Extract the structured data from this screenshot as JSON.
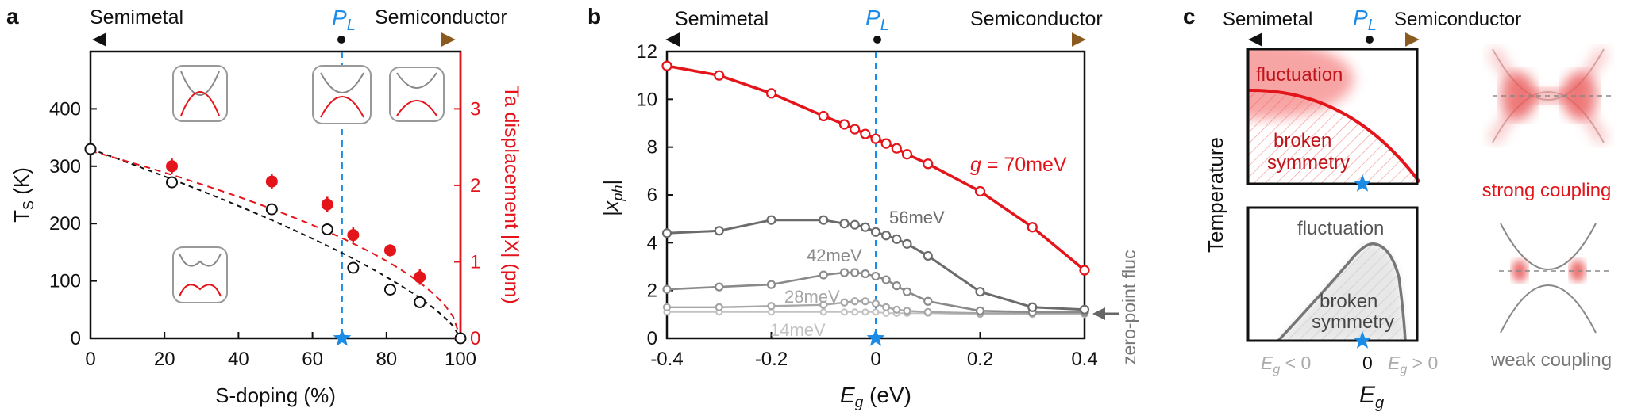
{
  "colors": {
    "red": "#e4141b",
    "blue": "#1a8be6",
    "black": "#111111",
    "gray": "#6b6b6b",
    "gray2": "#8a8a8a",
    "gray3": "#a6a6a6",
    "gray4": "#c2c2c2",
    "brown": "#8a5a1e"
  },
  "arrow_labels": {
    "left": "Semimetal",
    "right": "Semiconductor",
    "pl": "P",
    "pl_sub": "L"
  },
  "panels": {
    "a": {
      "letter": "a",
      "chart_data": {
        "type": "scatter",
        "xlabel": "S-doping (%)",
        "ylabel_left": "T",
        "ylabel_left_sub": "S",
        "ylabel_left_unit": " (K)",
        "ylabel_right": "Ta displacement |X| (pm)",
        "xlim": [
          0,
          100
        ],
        "ylim_left": [
          0,
          500
        ],
        "ylim_right": [
          0,
          3.75
        ],
        "xticks": [
          0,
          20,
          40,
          60,
          80,
          100
        ],
        "yticks_left": [
          0,
          100,
          200,
          300,
          400
        ],
        "yticks_right": [
          0,
          1,
          2,
          3
        ],
        "series": [
          {
            "axis": "left",
            "style": "open-circle",
            "x": [
              0,
              22,
              49,
              64,
              71,
              81,
              89,
              100
            ],
            "y": [
              330,
              272,
              225,
              190,
              123,
              85,
              63,
              0
            ]
          },
          {
            "axis": "right",
            "style": "filled-circle-errorbar",
            "x": [
              0,
              22,
              49,
              64,
              71,
              81,
              89,
              100
            ],
            "y": [
              2.45,
              2.25,
              2.05,
              1.75,
              1.35,
              1.15,
              0.8,
              0
            ],
            "err": [
              0,
              0.1,
              0.1,
              0.1,
              0.1,
              0.08,
              0.1,
              0
            ]
          }
        ],
        "pl_x": 68,
        "fits": [
          {
            "axis": "left",
            "style": "black-dashed"
          },
          {
            "axis": "right",
            "style": "red-dashed"
          }
        ]
      }
    },
    "b": {
      "letter": "b",
      "chart_data": {
        "type": "line",
        "xlabel": "E",
        "xlabel_sub": "g",
        "xlabel_unit": " (eV)",
        "ylabel": "|x",
        "ylabel_sub": "ph",
        "ylabel_end": "|",
        "xlim": [
          -0.4,
          0.4
        ],
        "ylim": [
          0,
          12
        ],
        "xticks": [
          -0.4,
          -0.2,
          0,
          0.2,
          0.4
        ],
        "xtick_labels": [
          "-0.4",
          "-0.2",
          "0",
          "0.2",
          "0.4"
        ],
        "yticks": [
          0,
          2,
          4,
          6,
          8,
          10,
          12
        ],
        "series": [
          {
            "name": "g = 70meV",
            "color_key": "red",
            "x": [
              -0.4,
              -0.3,
              -0.2,
              -0.1,
              -0.06,
              -0.04,
              -0.02,
              0,
              0.02,
              0.04,
              0.06,
              0.1,
              0.2,
              0.3,
              0.4
            ],
            "y": [
              11.4,
              11.0,
              10.25,
              9.3,
              8.95,
              8.75,
              8.55,
              8.35,
              8.15,
              7.95,
              7.7,
              7.3,
              6.15,
              4.65,
              2.85
            ]
          },
          {
            "name": "56meV",
            "color_key": "gray",
            "x": [
              -0.4,
              -0.3,
              -0.2,
              -0.1,
              -0.06,
              -0.04,
              -0.02,
              0,
              0.02,
              0.04,
              0.06,
              0.1,
              0.2,
              0.3,
              0.4
            ],
            "y": [
              4.4,
              4.5,
              4.95,
              4.95,
              4.8,
              4.75,
              4.65,
              4.45,
              4.3,
              4.15,
              3.95,
              3.45,
              1.95,
              1.3,
              1.2
            ]
          },
          {
            "name": "42meV",
            "color_key": "gray2",
            "x": [
              -0.4,
              -0.3,
              -0.2,
              -0.1,
              -0.06,
              -0.04,
              -0.02,
              0,
              0.02,
              0.04,
              0.06,
              0.1,
              0.2,
              0.3,
              0.4
            ],
            "y": [
              2.05,
              2.15,
              2.25,
              2.65,
              2.75,
              2.75,
              2.7,
              2.6,
              2.45,
              2.2,
              1.95,
              1.55,
              1.15,
              1.1,
              1.1
            ]
          },
          {
            "name": "28meV",
            "color_key": "gray3",
            "x": [
              -0.4,
              -0.3,
              -0.2,
              -0.1,
              -0.06,
              -0.04,
              -0.02,
              0,
              0.02,
              0.04,
              0.06,
              0.1,
              0.2,
              0.3,
              0.4
            ],
            "y": [
              1.3,
              1.3,
              1.35,
              1.4,
              1.5,
              1.55,
              1.55,
              1.45,
              1.3,
              1.2,
              1.15,
              1.1,
              1.05,
              1.05,
              1.05
            ]
          },
          {
            "name": "14meV",
            "color_key": "gray4",
            "x": [
              -0.4,
              -0.3,
              -0.2,
              -0.1,
              -0.06,
              -0.04,
              -0.02,
              0,
              0.02,
              0.04,
              0.06,
              0.1,
              0.2,
              0.3,
              0.4
            ],
            "y": [
              1.1,
              1.1,
              1.1,
              1.1,
              1.1,
              1.1,
              1.1,
              1.1,
              1.05,
              1.05,
              1.05,
              1.05,
              1.0,
              1.0,
              1.0
            ]
          }
        ],
        "label_g_prefix": "g",
        "label_g_suffix": " = 70meV",
        "zero_point_label": "zero-point fluc",
        "zero_point_y": 1.05
      }
    },
    "c": {
      "letter": "c",
      "ylabel": "Temperature",
      "xlabel": "E",
      "xlabel_sub": "g",
      "top_box": {
        "fluct": "fluctuation",
        "broken1": "broken",
        "broken2": "symmetry"
      },
      "bottom_box": {
        "fluct": "fluctuation",
        "broken1": "broken",
        "broken2": "symmetry"
      },
      "xtick_left": "E",
      "xtick_left_sub": "g",
      "xtick_left_rel": " < 0",
      "xtick_mid": "0",
      "xtick_right": "E",
      "xtick_right_sub": "g",
      "xtick_right_rel": " > 0",
      "strong": "strong coupling",
      "weak": "weak coupling"
    }
  }
}
